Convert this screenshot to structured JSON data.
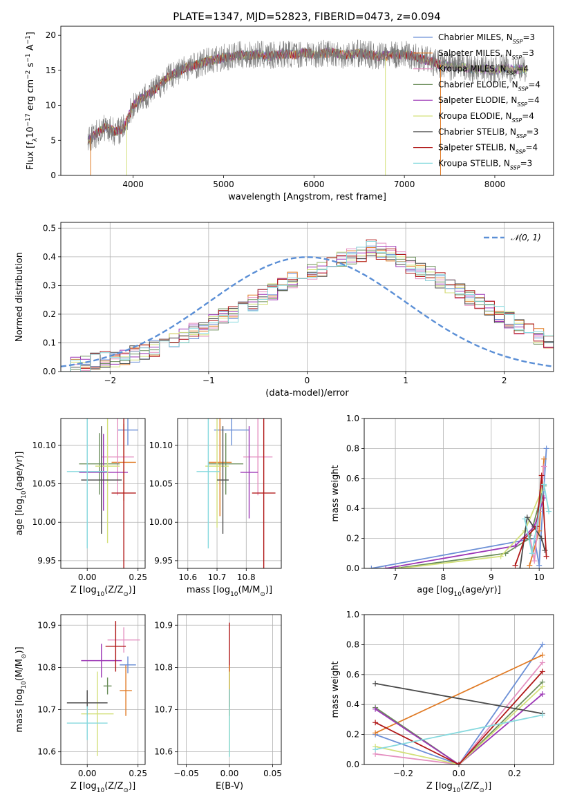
{
  "figure": {
    "title": "PLATE=1347, MJD=52823, FIBERID=0473, z=0.094"
  },
  "legend": {
    "entries": [
      {
        "name": "Chabrier MILES, N",
        "sub": "SSP",
        "suffix": "=3",
        "color": "#6b8fd6"
      },
      {
        "name": "Salpeter MILES, N",
        "sub": "SSP",
        "suffix": "=3",
        "color": "#e07a24"
      },
      {
        "name": "Kroupa MILES, N",
        "sub": "SSP",
        "suffix": "=4",
        "color": "#e48fc0"
      },
      {
        "name": "Chabrier ELODIE, N",
        "sub": "SSP",
        "suffix": "=4",
        "color": "#6b8e5a"
      },
      {
        "name": "Salpeter ELODIE, N",
        "sub": "SSP",
        "suffix": "=4",
        "color": "#9b35b5"
      },
      {
        "name": "Kroupa ELODIE, N",
        "sub": "SSP",
        "suffix": "=4",
        "color": "#d3e07a"
      },
      {
        "name": "Chabrier STELIB, N",
        "sub": "SSP",
        "suffix": "=3",
        "color": "#4a4a4a"
      },
      {
        "name": "Salpeter STELIB, N",
        "sub": "SSP",
        "suffix": "=4",
        "color": "#b01818"
      },
      {
        "name": "Kroupa STELIB, N",
        "sub": "SSP",
        "suffix": "=3",
        "color": "#86d9de"
      }
    ],
    "normal_label": "𝒩(0, 1)",
    "normal_color": "#5b8fd6"
  },
  "chart_data": [
    {
      "id": "spectrum",
      "type": "line",
      "xlabel": "wavelength [Angstrom, rest frame]",
      "ylabel": "Flux [f",
      "ylabel_sub": "λ",
      "ylabel_mid": "10",
      "ylabel_sup": "−17",
      "ylabel_tail": " erg cm",
      "ylabel_sup2": "−2",
      "ylabel_tail2": " s",
      "ylabel_sup3": "−1",
      "ylabel_tail3": " A",
      "ylabel_sup4": "−1",
      "ylabel_end": "]",
      "xlim": [
        3200,
        8650
      ],
      "ylim": [
        0,
        21.3
      ],
      "xticks": [
        4000,
        5000,
        6000,
        7000,
        8000
      ],
      "yticks": [
        0,
        5,
        10,
        15,
        20
      ],
      "x": [
        3500,
        3600,
        3700,
        3800,
        3900,
        4000,
        4100,
        4200,
        4300,
        4400,
        4500,
        4600,
        4700,
        4800,
        4900,
        5000,
        5100,
        5200,
        5300,
        5400,
        5500,
        5600,
        5700,
        5800,
        5900,
        6000,
        6100,
        6200,
        6300,
        6400,
        6500,
        6600,
        6700,
        6800,
        6900,
        7000,
        7100,
        7200,
        7300,
        7400,
        7500,
        7600,
        7700,
        7800,
        7900,
        8000,
        8100,
        8200,
        8300
      ],
      "flux": [
        5.0,
        6.0,
        7.0,
        6.2,
        6.8,
        10.0,
        11.2,
        11.8,
        13.0,
        14.2,
        14.8,
        15.5,
        15.8,
        16.2,
        16.5,
        16.8,
        17.0,
        17.2,
        17.1,
        17.3,
        17.0,
        17.2,
        17.4,
        17.2,
        17.5,
        17.3,
        17.4,
        17.6,
        17.2,
        17.3,
        17.4,
        17.3,
        17.0,
        17.1,
        17.2,
        17.3,
        17.0,
        16.6,
        16.3,
        15.8,
        15.5,
        15.6,
        15.3,
        15.1,
        15.2,
        15.0,
        15.4,
        15.1,
        15.2
      ]
    },
    {
      "id": "residuals",
      "type": "area",
      "xlabel": "(data-model)/error",
      "ylabel": "Normed distribution",
      "xlim": [
        -2.5,
        2.5
      ],
      "ylim": [
        0,
        0.52
      ],
      "xticks": [
        -2,
        -1,
        0,
        1,
        2
      ],
      "yticks": [
        0.0,
        0.1,
        0.2,
        0.3,
        0.4,
        0.5
      ],
      "bin_width": 0.1,
      "bin_start": -2.5,
      "hist": [
        0.02,
        0.025,
        0.03,
        0.035,
        0.04,
        0.045,
        0.05,
        0.06,
        0.07,
        0.08,
        0.09,
        0.11,
        0.12,
        0.14,
        0.15,
        0.17,
        0.19,
        0.2,
        0.22,
        0.24,
        0.26,
        0.28,
        0.3,
        0.32,
        0.34,
        0.35,
        0.36,
        0.38,
        0.39,
        0.4,
        0.41,
        0.43,
        0.42,
        0.41,
        0.39,
        0.37,
        0.35,
        0.34,
        0.32,
        0.3,
        0.28,
        0.26,
        0.24,
        0.22,
        0.2,
        0.18,
        0.16,
        0.14,
        0.12,
        0.1
      ]
    },
    {
      "id": "age-vs-Z",
      "type": "scatter",
      "xlabel": "Z [log",
      "xlabel_sub": "10",
      "xlabel_tail": "(Z/Z",
      "xlabel_sub2": "⊙",
      "xlabel_end": ")]",
      "ylabel": "age  [log",
      "ylabel_sub": "10",
      "ylabel_tail": "(age/yr)]",
      "xlim": [
        -0.13,
        0.285
      ],
      "ylim": [
        9.94,
        10.135
      ],
      "xticks": [
        0.0,
        0.25
      ],
      "yticks": [
        9.95,
        10.0,
        10.05,
        10.1
      ],
      "points": [
        {
          "x": 0.2,
          "y": 10.12,
          "xerr": 0.05,
          "yerr": 0.02,
          "color": "#6b8fd6"
        },
        {
          "x": 0.18,
          "y": 10.078,
          "xerr": 0.06,
          "yerr": 0.05,
          "color": "#e07a24"
        },
        {
          "x": 0.15,
          "y": 10.085,
          "xerr": 0.08,
          "yerr": 0.05,
          "color": "#e48fc0"
        },
        {
          "x": 0.06,
          "y": 10.076,
          "xerr": 0.1,
          "yerr": 0.04,
          "color": "#6b8e5a"
        },
        {
          "x": 0.08,
          "y": 10.065,
          "xerr": 0.12,
          "yerr": 0.05,
          "color": "#9b35b5"
        },
        {
          "x": 0.1,
          "y": 10.073,
          "xerr": 0.06,
          "yerr": 0.1,
          "color": "#d3e07a"
        },
        {
          "x": 0.07,
          "y": 10.055,
          "xerr": 0.1,
          "yerr": 0.07,
          "color": "#4a4a4a"
        },
        {
          "x": 0.18,
          "y": 10.038,
          "xerr": 0.06,
          "yerr": 0.1,
          "color": "#b01818"
        },
        {
          "x": 0.0,
          "y": 10.066,
          "xerr": 0.1,
          "yerr": 0.1,
          "color": "#86d9de"
        }
      ]
    },
    {
      "id": "age-vs-mass",
      "type": "scatter",
      "xlabel": "mass [log",
      "xlabel_sub": "10",
      "xlabel_tail": "(M/M",
      "xlabel_sub2": "⊙",
      "xlabel_end": ")]",
      "xlim": [
        10.565,
        10.92
      ],
      "ylim": [
        9.94,
        10.135
      ],
      "xticks": [
        10.6,
        10.7,
        10.8
      ],
      "yticks": [
        9.95,
        10.0,
        10.05,
        10.1
      ],
      "points": [
        {
          "x": 10.75,
          "y": 10.12,
          "xerr": 0.06,
          "yerr": 0.02,
          "color": "#6b8fd6"
        },
        {
          "x": 10.71,
          "y": 10.078,
          "xerr": 0.04,
          "yerr": 0.07,
          "color": "#e07a24"
        },
        {
          "x": 10.84,
          "y": 10.085,
          "xerr": 0.05,
          "yerr": 0.05,
          "color": "#e48fc0"
        },
        {
          "x": 10.73,
          "y": 10.076,
          "xerr": 0.06,
          "yerr": 0.04,
          "color": "#6b8e5a"
        },
        {
          "x": 10.81,
          "y": 10.065,
          "xerr": 0.03,
          "yerr": 0.06,
          "color": "#9b35b5"
        },
        {
          "x": 10.7,
          "y": 10.073,
          "xerr": 0.04,
          "yerr": 0.08,
          "color": "#d3e07a"
        },
        {
          "x": 10.72,
          "y": 10.055,
          "xerr": 0.02,
          "yerr": 0.07,
          "color": "#4a4a4a"
        },
        {
          "x": 10.86,
          "y": 10.038,
          "xerr": 0.04,
          "yerr": 0.1,
          "color": "#b01818"
        },
        {
          "x": 10.67,
          "y": 10.066,
          "xerr": 0.04,
          "yerr": 0.1,
          "color": "#86d9de"
        }
      ]
    },
    {
      "id": "mass-weight-vs-age",
      "type": "line",
      "xlabel": "age  [log",
      "xlabel_sub": "10",
      "xlabel_tail": "(age/yr)]",
      "ylabel": "mass weight",
      "xlim": [
        6.35,
        10.3
      ],
      "ylim": [
        0,
        1.0
      ],
      "xticks": [
        7,
        8,
        9,
        10
      ],
      "yticks": [
        0.0,
        0.2,
        0.4,
        0.6,
        0.8,
        1.0
      ],
      "series": [
        {
          "color": "#6b8fd6",
          "x": [
            6.5,
            9.9,
            10.0,
            10.15
          ],
          "y": [
            0.0,
            0.2,
            0.02,
            0.8
          ]
        },
        {
          "color": "#e07a24",
          "x": [
            9.8,
            10.0,
            10.1
          ],
          "y": [
            0.02,
            0.25,
            0.73
          ]
        },
        {
          "color": "#e48fc0",
          "x": [
            9.8,
            9.9,
            10.0,
            10.1
          ],
          "y": [
            0.22,
            0.05,
            0.38,
            0.68
          ]
        },
        {
          "color": "#6b8e5a",
          "x": [
            7.0,
            9.3,
            9.8,
            10.1
          ],
          "y": [
            0.0,
            0.1,
            0.2,
            0.55
          ]
        },
        {
          "color": "#9b35b5",
          "x": [
            6.8,
            9.5,
            9.9,
            10.1
          ],
          "y": [
            0.0,
            0.15,
            0.28,
            0.47
          ]
        },
        {
          "color": "#d3e07a",
          "x": [
            7.1,
            9.2,
            9.7,
            10.05
          ],
          "y": [
            0.0,
            0.08,
            0.25,
            0.52
          ]
        },
        {
          "color": "#4a4a4a",
          "x": [
            9.6,
            9.75,
            10.05,
            10.12
          ],
          "y": [
            0.0,
            0.34,
            0.2,
            0.12
          ]
        },
        {
          "color": "#b01818",
          "x": [
            9.5,
            9.7,
            9.95,
            10.05,
            10.15
          ],
          "y": [
            0.02,
            0.2,
            0.28,
            0.62,
            0.08
          ]
        },
        {
          "color": "#86d9de",
          "x": [
            9.7,
            9.85,
            10.1,
            10.2
          ],
          "y": [
            0.33,
            0.1,
            0.56,
            0.38
          ]
        }
      ]
    },
    {
      "id": "mass-vs-Z",
      "type": "scatter",
      "xlabel": "Z [log",
      "xlabel_sub": "10",
      "xlabel_tail": "(Z/Z",
      "xlabel_sub2": "⊙",
      "xlabel_end": ")]",
      "ylabel": "mass [log",
      "ylabel_sub": "10",
      "ylabel_tail": "(M/M",
      "ylabel_sub2": "⊙",
      "ylabel_end": ")]",
      "xlim": [
        -0.13,
        0.285
      ],
      "ylim": [
        10.57,
        10.925
      ],
      "xticks": [
        0.0,
        0.25
      ],
      "yticks": [
        10.6,
        10.7,
        10.8,
        10.9
      ],
      "points": [
        {
          "x": 0.2,
          "y": 10.806,
          "xerr": 0.04,
          "yerr": 0.02,
          "color": "#6b8fd6"
        },
        {
          "x": 0.19,
          "y": 10.745,
          "xerr": 0.03,
          "yerr": 0.06,
          "color": "#e07a24"
        },
        {
          "x": 0.18,
          "y": 10.865,
          "xerr": 0.08,
          "yerr": 0.03,
          "color": "#e48fc0"
        },
        {
          "x": 0.1,
          "y": 10.756,
          "xerr": 0.02,
          "yerr": 0.02,
          "color": "#6b8e5a"
        },
        {
          "x": 0.07,
          "y": 10.816,
          "xerr": 0.1,
          "yerr": 0.04,
          "color": "#9b35b5"
        },
        {
          "x": 0.05,
          "y": 10.69,
          "xerr": 0.08,
          "yerr": 0.1,
          "color": "#d3e07a"
        },
        {
          "x": 0.0,
          "y": 10.716,
          "xerr": 0.1,
          "yerr": 0.03,
          "color": "#4a4a4a"
        },
        {
          "x": 0.14,
          "y": 10.85,
          "xerr": 0.05,
          "yerr": 0.06,
          "color": "#b01818"
        },
        {
          "x": 0.0,
          "y": 10.668,
          "xerr": 0.1,
          "yerr": 0.04,
          "color": "#86d9de"
        }
      ]
    },
    {
      "id": "mass-vs-EBV",
      "type": "scatter",
      "xlabel": "E(B-V)",
      "xlim": [
        -0.06,
        0.06
      ],
      "ylim": [
        10.57,
        10.925
      ],
      "xticks": [
        -0.05,
        0.0,
        0.05
      ],
      "yticks": [
        10.6,
        10.7,
        10.8,
        10.9
      ],
      "points": [
        {
          "x": 0.0,
          "y": 10.806,
          "xerr": 0.0,
          "yerr": 0.1,
          "color": "#b01818"
        },
        {
          "x": 0.0,
          "y": 10.745,
          "xerr": 0.0,
          "yerr": 0.06,
          "color": "#e07a24"
        },
        {
          "x": 0.0,
          "y": 10.69,
          "xerr": 0.0,
          "yerr": 0.1,
          "color": "#d3e07a"
        },
        {
          "x": 0.0,
          "y": 10.668,
          "xerr": 0.0,
          "yerr": 0.08,
          "color": "#86d9de"
        }
      ]
    },
    {
      "id": "mass-weight-vs-Z",
      "type": "line",
      "xlabel": "Z [log",
      "xlabel_sub": "10",
      "xlabel_tail": "(Z/Z",
      "xlabel_sub2": "⊙",
      "xlabel_end": ")]",
      "ylabel": "mass weight",
      "xlim": [
        -0.34,
        0.34
      ],
      "ylim": [
        0,
        1.0
      ],
      "xticks": [
        -0.2,
        0.0,
        0.2
      ],
      "yticks": [
        0.0,
        0.2,
        0.4,
        0.6,
        0.8,
        1.0
      ],
      "series": [
        {
          "color": "#6b8fd6",
          "x": [
            -0.3,
            0.0,
            0.3
          ],
          "y": [
            0.2,
            0.0,
            0.8
          ]
        },
        {
          "color": "#e07a24",
          "x": [
            -0.3,
            0.3
          ],
          "y": [
            0.21,
            0.73
          ]
        },
        {
          "color": "#e48fc0",
          "x": [
            -0.3,
            0.0,
            0.3
          ],
          "y": [
            0.07,
            0.0,
            0.68
          ]
        },
        {
          "color": "#6b8e5a",
          "x": [
            -0.3,
            0.0,
            0.3
          ],
          "y": [
            0.38,
            0.0,
            0.55
          ]
        },
        {
          "color": "#9b35b5",
          "x": [
            -0.3,
            0.0,
            0.3
          ],
          "y": [
            0.37,
            0.0,
            0.47
          ]
        },
        {
          "color": "#d3e07a",
          "x": [
            -0.3,
            0.0,
            0.3
          ],
          "y": [
            0.12,
            0.0,
            0.52
          ]
        },
        {
          "color": "#4a4a4a",
          "x": [
            -0.3,
            0.3
          ],
          "y": [
            0.54,
            0.34
          ]
        },
        {
          "color": "#b01818",
          "x": [
            -0.3,
            0.0,
            0.3
          ],
          "y": [
            0.28,
            0.0,
            0.62
          ]
        },
        {
          "color": "#86d9de",
          "x": [
            -0.3,
            0.3
          ],
          "y": [
            0.1,
            0.33
          ]
        }
      ]
    }
  ]
}
